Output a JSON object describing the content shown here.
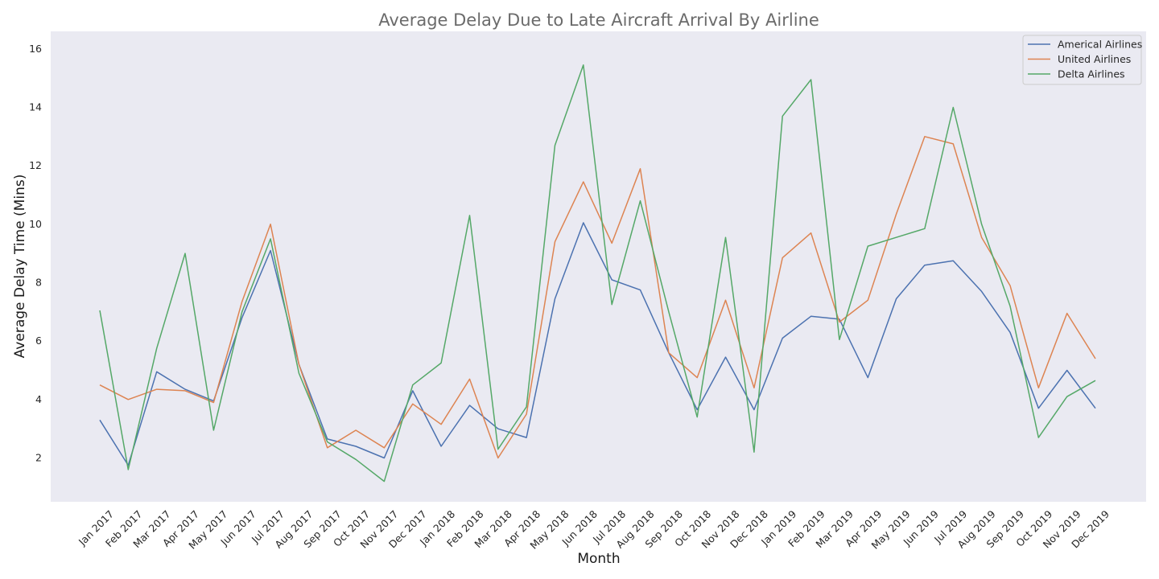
{
  "chart_data": {
    "type": "line",
    "title": "Average Delay Due to Late Aircraft Arrival By Airline",
    "xlabel": "Month",
    "ylabel": "Average Delay Time (Mins)",
    "categories": [
      "Jan 2017",
      "Feb 2017",
      "Mar 2017",
      "Apr 2017",
      "May 2017",
      "Jun 2017",
      "Jul 2017",
      "Aug 2017",
      "Sep 2017",
      "Oct 2017",
      "Nov 2017",
      "Dec 2017",
      "Jan 2018",
      "Feb 2018",
      "Mar 2018",
      "Apr 2018",
      "May 2018",
      "Jun 2018",
      "Jul 2018",
      "Aug 2018",
      "Sep 2018",
      "Oct 2018",
      "Nov 2018",
      "Dec 2018",
      "Jan 2019",
      "Feb 2019",
      "Mar 2019",
      "Apr 2019",
      "May 2019",
      "Jun 2019",
      "Jul 2019",
      "Aug 2019",
      "Sep 2019",
      "Oct 2019",
      "Nov 2019",
      "Dec 2019"
    ],
    "yticks": [
      2,
      4,
      6,
      8,
      10,
      12,
      14,
      16
    ],
    "ylim": [
      0.5,
      16.6
    ],
    "grid": false,
    "legend": "top-right",
    "background": "#eaeaf2",
    "series": [
      {
        "name": "Americal Airlines",
        "color": "#4c72b0",
        "values": [
          3.3,
          1.75,
          4.95,
          4.35,
          3.95,
          6.8,
          9.1,
          5.2,
          2.65,
          2.4,
          2.0,
          4.3,
          2.4,
          3.8,
          3.0,
          2.7,
          7.45,
          10.05,
          8.1,
          7.75,
          5.6,
          3.65,
          5.45,
          3.65,
          6.1,
          6.85,
          6.75,
          4.75,
          7.45,
          8.6,
          8.75,
          7.7,
          6.3,
          3.7,
          5.0,
          3.7
        ]
      },
      {
        "name": "United Airlines",
        "color": "#dd8452",
        "values": [
          4.5,
          4.0,
          4.35,
          4.3,
          3.9,
          7.35,
          10.0,
          5.2,
          2.35,
          2.95,
          2.35,
          3.85,
          3.15,
          4.7,
          2.0,
          3.5,
          9.4,
          11.45,
          9.35,
          11.9,
          5.6,
          4.75,
          7.4,
          4.4,
          8.85,
          9.7,
          6.65,
          7.4,
          10.35,
          13.0,
          12.75,
          9.55,
          7.9,
          4.4,
          6.95,
          5.4
        ]
      },
      {
        "name": "Delta Airlines",
        "color": "#55a868",
        "values": [
          7.05,
          1.6,
          5.75,
          9.0,
          2.95,
          7.0,
          9.5,
          4.9,
          2.55,
          1.95,
          1.2,
          4.5,
          5.25,
          10.3,
          2.3,
          3.75,
          12.7,
          15.45,
          7.25,
          10.8,
          7.0,
          3.4,
          9.55,
          2.2,
          13.7,
          14.95,
          6.05,
          9.25,
          9.55,
          9.85,
          14.0,
          10.0,
          7.2,
          2.7,
          4.1,
          4.65
        ]
      }
    ]
  }
}
